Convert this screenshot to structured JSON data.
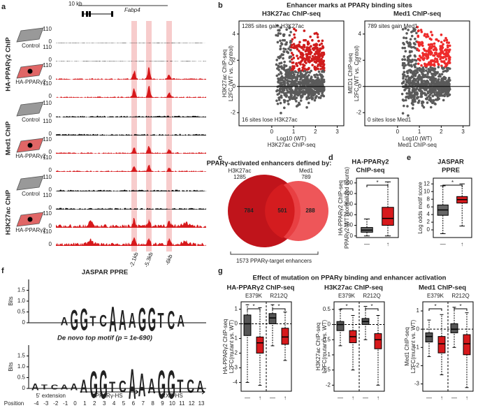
{
  "panel_labels": [
    "a",
    "b",
    "c",
    "d",
    "e",
    "f",
    "g"
  ],
  "a": {
    "scale": "10 kb",
    "gene": "Fabp4",
    "groups": [
      "HA-PPARγ2 ChIP",
      "Med1 ChIP",
      "H3K27ac ChIP"
    ],
    "cells": [
      "Control",
      "HA-PPARγ2"
    ],
    "track_ticks": [
      110,
      0
    ],
    "sites": [
      "-2.1kb",
      "-5.3kb",
      "-6kb"
    ]
  },
  "b": {
    "title": "Enhancer marks at PPARγ binding sites",
    "xlim": [
      -1.5,
      3.3
    ],
    "xticks": [
      0,
      1,
      2,
      3
    ],
    "ylim": [
      -3,
      5
    ],
    "yticks": [
      -2,
      0,
      2,
      4
    ],
    "plots": [
      {
        "title": "H3K27ac ChIP-seq",
        "gain": "1285 sites gain H3K27ac",
        "lose": "16 sites lose H3K27ac",
        "ylabel": [
          "H3K27ac ChIP-seq",
          "L2FC (WT vs. Control)"
        ],
        "xlabel": [
          "Log10 (WT)",
          "H3K27ac ChIP-seq"
        ]
      },
      {
        "title": "Med1 ChIP-seq",
        "gain": "789 sites gain Med1",
        "lose": "0 sites lose Med1",
        "ylabel": [
          "MED1 ChIP-seq",
          "L2FC (WT vs. Control)"
        ],
        "xlabel": [
          "Log10 (WT)",
          "Med1 ChIP-seq"
        ]
      }
    ]
  },
  "c": {
    "title": "PPARγ-activated enhancers defined by:",
    "sets": [
      {
        "name": "H3K27ac",
        "count": 1285
      },
      {
        "name": "Med1",
        "count": 789
      }
    ],
    "regions": [
      784,
      501,
      288
    ],
    "footer": "1573 PPARγ-target enhancers"
  },
  "conditions": [
    "—",
    "↑"
  ],
  "d": {
    "title": [
      "HA-PPARγ2",
      "ChIP-seq"
    ],
    "ylabel": [
      "HA-PPARγ2 ChIP-seq",
      "PPARγ2-WT (normalized counts)"
    ],
    "ylim": [
      -15,
      545
    ],
    "yticks": [
      0,
      100,
      200,
      300,
      400,
      500
    ],
    "sig": "*",
    "boxes": [
      [
        0,
        35,
        55,
        80,
        160
      ],
      [
        0,
        100,
        165,
        270,
        510
      ]
    ]
  },
  "e": {
    "title": [
      "JASPAR",
      "PPRE"
    ],
    "ylabel": "Log odds motif score",
    "ylim": [
      -2,
      13.5
    ],
    "yticks": [
      0,
      2,
      4,
      6,
      8,
      10,
      12
    ],
    "sig": "*",
    "boxes": [
      [
        -1,
        3.8,
        5.2,
        6.5,
        11.5
      ],
      [
        1,
        7,
        7.9,
        8.7,
        12
      ]
    ]
  },
  "f": {
    "logos": [
      {
        "title": "JASPAR PPRE",
        "letters": [
          "A",
          "G",
          "G",
          "T",
          "C",
          "A",
          "A",
          "A",
          "G",
          "G",
          "T",
          "C",
          "A"
        ],
        "heights": [
          0.5,
          1.2,
          1.3,
          0.6,
          0.7,
          1.5,
          1.2,
          0.9,
          1.4,
          1.4,
          0.9,
          1.1,
          0.7
        ]
      },
      {
        "title": "De novo top motif (p = 1e-690)",
        "letters": [
          "A",
          "T",
          "C",
          "A",
          "A",
          "A",
          "G",
          "G",
          "T",
          "C",
          "A",
          "A",
          "A",
          "G",
          "G",
          "T",
          "C",
          "A"
        ],
        "heights": [
          0.4,
          0.3,
          0.3,
          0.3,
          0.4,
          0.8,
          1.6,
          1.7,
          0.6,
          0.7,
          1.8,
          1.4,
          0.9,
          1.7,
          1.7,
          0.8,
          0.8,
          0.7
        ]
      }
    ],
    "ylabel": "Bits",
    "yticks": [
      0,
      0.5,
      {
        "value": 1,
        "label": "1.0"
      },
      1.5
    ],
    "ylim": [
      0,
      2
    ],
    "position_label": "Position",
    "positions": [
      -4,
      -3,
      -2,
      -1,
      0,
      1,
      2,
      3,
      4,
      5,
      6,
      7,
      8,
      9,
      10,
      11,
      12,
      13
    ],
    "annotations": [
      "5' extension",
      "PPARγ-HS",
      "RXR-HS"
    ]
  },
  "g": {
    "title": "Effect of mutation on PPARγ binding and enhancer activation",
    "mutants": [
      "E379K",
      "R212Q"
    ],
    "sig": "*",
    "plots": [
      {
        "title": "HA-PPARγ2 ChIP-seq",
        "ylabel": [
          "HA-PPARγ2 ChIP-seq",
          "L2FC(mutant vs. WT)"
        ],
        "ylim": [
          -4.6,
          1.5
        ],
        "yticks": [
          1,
          0,
          -1,
          -2,
          -3,
          -4
        ],
        "boxes": [
          [
            -4,
            -0.8,
            0,
            0.6,
            1.3
          ],
          [
            -4.2,
            -2,
            -1.3,
            -0.9,
            1.1
          ],
          [
            -1.5,
            0,
            0.4,
            0.7,
            1.3
          ],
          [
            -2.5,
            -1.4,
            -0.9,
            -0.3,
            0.8
          ]
        ]
      },
      {
        "title": "H3K27ac ChIP-seq",
        "ylabel": [
          "H3K27ac ChIP-seq",
          "L2FC(mutant vs. WT)"
        ],
        "ylim": [
          -2.2,
          0.75
        ],
        "yticks": [
          0.5,
          0,
          -0.5,
          -1,
          -1.5,
          -2
        ],
        "boxes": [
          [
            -0.7,
            -0.2,
            0,
            0.1,
            0.5
          ],
          [
            -1.5,
            -0.6,
            -0.4,
            -0.2,
            0.3
          ],
          [
            -0.5,
            0,
            0.1,
            0.2,
            0.6
          ],
          [
            -2,
            -0.8,
            -0.5,
            -0.3,
            0.3
          ]
        ]
      },
      {
        "title": "Med1 ChIP-seq",
        "ylabel": [
          "Med1 ChIP-seq",
          "L2FC(mutant vs. WT)"
        ],
        "ylim": [
          -3.4,
          1.5
        ],
        "yticks": [
          1,
          0,
          -1,
          -2,
          -3
        ],
        "boxes": [
          [
            -1.5,
            -0.7,
            -0.4,
            -0.2,
            0.5
          ],
          [
            -2.5,
            -1.3,
            -0.8,
            -0.4,
            0.8
          ],
          [
            -1,
            -0.2,
            0,
            0.3,
            1.2
          ],
          [
            -3.2,
            -1.4,
            -0.8,
            -0.3,
            0.9
          ]
        ]
      }
    ]
  }
}
